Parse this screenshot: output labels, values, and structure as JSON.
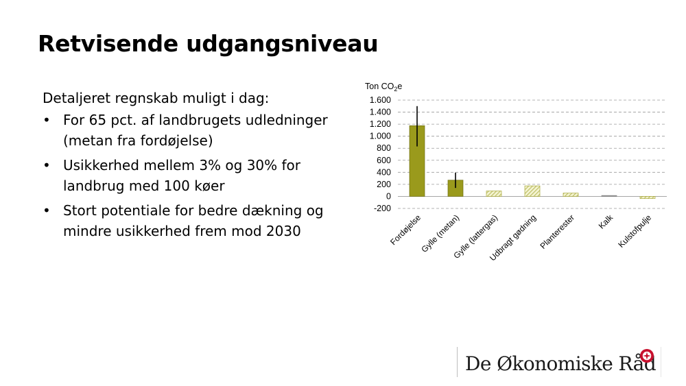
{
  "slide": {
    "title": "Retvisende udgangsniveau",
    "intro": "Detaljeret regnskab muligt i dag:",
    "bullets": [
      "For 65 pct. af landbrugets udledninger (metan fra fordøjelse)",
      "Usikkerhed mellem 3% og 30% for landbrug med 100 køer",
      "Stort potentiale for bedre dækning og mindre usikkerhed frem mod 2030"
    ],
    "bullet_symbol": "•"
  },
  "chart_data": {
    "type": "bar",
    "ylabel_main": "Ton CO",
    "ylabel_sub": "2",
    "ylabel_end": "e",
    "ylim": [
      -200,
      1600
    ],
    "yticks": [
      {
        "value": 1600,
        "label": "1.600"
      },
      {
        "value": 1400,
        "label": "1.400"
      },
      {
        "value": 1200,
        "label": "1.200"
      },
      {
        "value": 1000,
        "label": "1.000"
      },
      {
        "value": 800,
        "label": "800"
      },
      {
        "value": 600,
        "label": "600"
      },
      {
        "value": 400,
        "label": "400"
      },
      {
        "value": 200,
        "label": "200"
      },
      {
        "value": 0,
        "label": "0"
      },
      {
        "value": -200,
        "label": "-200"
      }
    ],
    "grid": true,
    "categories": [
      "Fordøjelse",
      "Gylle (metan)",
      "Gylle (lattergas)",
      "Udbragt gødning",
      "Planterester",
      "Kalk",
      "Kulstofpulje"
    ],
    "values": [
      1175,
      270,
      90,
      175,
      55,
      15,
      -35
    ],
    "style": [
      "solid",
      "solid",
      "hatched",
      "hatched",
      "hatched",
      "solid-gray",
      "hatched"
    ],
    "error_bars": [
      {
        "index": 0,
        "low": 830,
        "high": 1500
      },
      {
        "index": 1,
        "low": 140,
        "high": 395
      }
    ],
    "colors": {
      "solid": "#9a9a1c",
      "hatch_stroke": "#a8a83a",
      "hatch_fill": "#f3f3cf",
      "gray": "#8c8c8c",
      "grid": "#9a9a9a"
    }
  },
  "logo": {
    "text": "De Økonomiske Råd",
    "mark_color": "#c8102e"
  }
}
